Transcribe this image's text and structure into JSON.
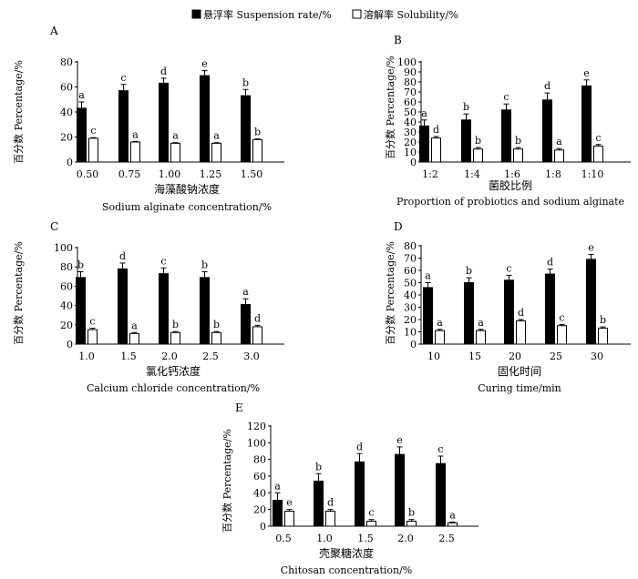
{
  "legend": {
    "suspension": "悬浮率 Suspension rate/%",
    "solubility": "溶解率 Solubility/%"
  },
  "colors": {
    "suspension": "#000000",
    "solubility": "#ffffff",
    "axis": "#000000"
  },
  "chart_data": [
    {
      "panel": "A",
      "type": "bar",
      "categories": [
        "0.50",
        "0.75",
        "1.00",
        "1.25",
        "1.50"
      ],
      "series": [
        {
          "name": "悬浮率 Suspension rate/%",
          "values": [
            43,
            57,
            63,
            69,
            53
          ],
          "errors": [
            5,
            5,
            4,
            4,
            5
          ],
          "labels": [
            "a",
            "c",
            "d",
            "e",
            "b"
          ]
        },
        {
          "name": "溶解率 Solubility/%",
          "values": [
            19,
            16,
            15,
            15,
            18
          ],
          "errors": [
            0.5,
            0.5,
            0.5,
            0.5,
            0.5
          ],
          "labels": [
            "c",
            "a",
            "a",
            "a",
            "b"
          ]
        }
      ],
      "ylim": [
        0,
        80
      ],
      "yticks": [
        0,
        20,
        40,
        60,
        80
      ],
      "ylabel": "百分数 Percentage/%",
      "xlabel_cn": "海藻酸钠浓度",
      "xlabel_en": "Sodium alginate concentration/%"
    },
    {
      "panel": "B",
      "type": "bar",
      "categories": [
        "1:2",
        "1:4",
        "1:6",
        "1:8",
        "1:10"
      ],
      "series": [
        {
          "name": "悬浮率 Suspension rate/%",
          "values": [
            36,
            42,
            52,
            62,
            76
          ],
          "errors": [
            6,
            6,
            6,
            7,
            6
          ],
          "labels": [
            "a",
            "b",
            "c",
            "d",
            "e"
          ]
        },
        {
          "name": "溶解率 Solubility/%",
          "values": [
            24,
            13,
            13,
            12,
            16
          ],
          "errors": [
            1.5,
            1.5,
            1.5,
            1.5,
            1.5
          ],
          "labels": [
            "d",
            "b",
            "b",
            "a",
            "c"
          ]
        }
      ],
      "ylim": [
        0,
        100
      ],
      "yticks": [
        0,
        10,
        20,
        30,
        40,
        50,
        60,
        70,
        80,
        90,
        100
      ],
      "ylabel": "百分数 Percentage/%",
      "xlabel_cn": "菌胶比例",
      "xlabel_en": "Proportion of probiotics and sodium alginate"
    },
    {
      "panel": "C",
      "type": "bar",
      "categories": [
        "1.0",
        "1.5",
        "2.0",
        "2.5",
        "3.0"
      ],
      "series": [
        {
          "name": "悬浮率 Suspension rate/%",
          "values": [
            69,
            78,
            73,
            69,
            41
          ],
          "errors": [
            6,
            6,
            6,
            6,
            6
          ],
          "labels": [
            "b",
            "d",
            "c",
            "b",
            "a"
          ]
        },
        {
          "name": "溶解率 Solubility/%",
          "values": [
            15,
            11,
            12,
            12,
            18
          ],
          "errors": [
            1.5,
            1,
            1,
            1,
            1.5
          ],
          "labels": [
            "c",
            "a",
            "b",
            "b",
            "d"
          ]
        }
      ],
      "ylim": [
        0,
        100
      ],
      "yticks": [
        0,
        20,
        40,
        60,
        80,
        100
      ],
      "ylabel": "百分数 Percentage/%",
      "xlabel_cn": "氯化钙浓度",
      "xlabel_en": "Calcium chloride concentration/%"
    },
    {
      "panel": "D",
      "type": "bar",
      "categories": [
        "10",
        "15",
        "20",
        "25",
        "30"
      ],
      "series": [
        {
          "name": "悬浮率 Suspension rate/%",
          "values": [
            46,
            50,
            52,
            57,
            69
          ],
          "errors": [
            4,
            4,
            4,
            4,
            4
          ],
          "labels": [
            "a",
            "b",
            "c",
            "d",
            "e"
          ]
        },
        {
          "name": "溶解率 Solubility/%",
          "values": [
            11,
            11,
            19,
            15,
            13
          ],
          "errors": [
            1,
            1,
            1,
            1,
            1
          ],
          "labels": [
            "a",
            "a",
            "d",
            "c",
            "b"
          ]
        }
      ],
      "ylim": [
        0,
        80
      ],
      "yticks": [
        0,
        10,
        20,
        30,
        40,
        50,
        60,
        70,
        80
      ],
      "ylabel": "百分数 Percentage/%",
      "xlabel_cn": "固化时间",
      "xlabel_en": "Curing time/min"
    },
    {
      "panel": "E",
      "type": "bar",
      "categories": [
        "0.5",
        "1.0",
        "1.5",
        "2.0",
        "2.5"
      ],
      "series": [
        {
          "name": "悬浮率 Suspension rate/%",
          "values": [
            31,
            54,
            77,
            86,
            75
          ],
          "errors": [
            9,
            9,
            10,
            9,
            9
          ],
          "labels": [
            "a",
            "b",
            "d",
            "e",
            "c"
          ]
        },
        {
          "name": "溶解率 Solubility/%",
          "values": [
            18,
            18,
            6,
            6,
            4
          ],
          "errors": [
            2,
            2,
            2,
            2,
            1
          ],
          "labels": [
            "e",
            "d",
            "c",
            "b",
            "a"
          ]
        }
      ],
      "ylim": [
        0,
        120
      ],
      "yticks": [
        0,
        20,
        40,
        60,
        80,
        100,
        120
      ],
      "ylabel": "百分数 Percentage/%",
      "xlabel_cn": "壳聚糖浓度",
      "xlabel_en": "Chitosan concentration/%"
    }
  ]
}
